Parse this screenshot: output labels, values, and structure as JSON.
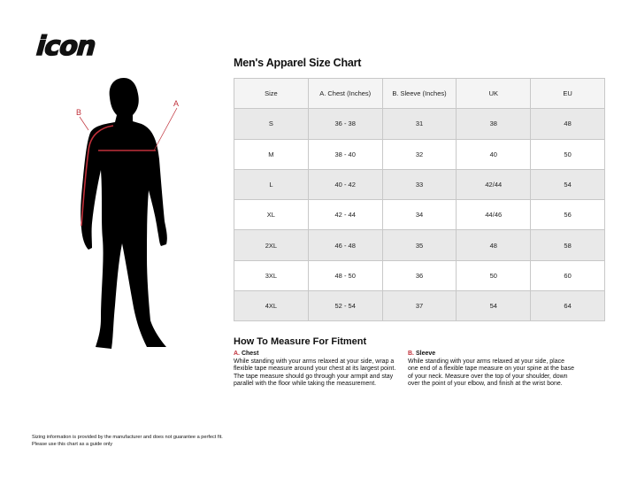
{
  "brand": {
    "logo_text": "icon"
  },
  "figure": {
    "label_a": "A",
    "label_b": "B",
    "accent": "#c0303a"
  },
  "size_chart": {
    "title": "Men's Apparel Size Chart",
    "columns": [
      "Size",
      "A. Chest (Inches)",
      "B. Sleeve (Inches)",
      "UK",
      "EU"
    ],
    "rows": [
      [
        "S",
        "36 - 38",
        "31",
        "38",
        "48"
      ],
      [
        "M",
        "38 - 40",
        "32",
        "40",
        "50"
      ],
      [
        "L",
        "40 - 42",
        "33",
        "42/44",
        "54"
      ],
      [
        "XL",
        "42 - 44",
        "34",
        "44/46",
        "56"
      ],
      [
        "2XL",
        "46 - 48",
        "35",
        "48",
        "58"
      ],
      [
        "3XL",
        "48 - 50",
        "36",
        "50",
        "60"
      ],
      [
        "4XL",
        "52 - 54",
        "37",
        "54",
        "64"
      ]
    ]
  },
  "measure": {
    "title": "How To Measure For Fitment",
    "chest": {
      "letter": "A.",
      "heading": "Chest",
      "text": "While standing with your arms relaxed at your side, wrap a flexible tape measure around your chest at its largest point. The tape measure should go through your armpit and stay parallel with the floor while taking the measurement."
    },
    "sleeve": {
      "letter": "B.",
      "heading": "Sleeve",
      "text": "While standing with your arms relaxed at your side, place one end of a flexible tape measure on your spine at the base of your neck. Measure over the top of your shoulder, down over the point of your elbow, and finish at the wrist bone."
    }
  },
  "disclaimer": {
    "line1": "Sizing information is provided by the manufacturer and does not guarantee a perfect fit.",
    "line2": "Please use this chart as a guide only"
  }
}
